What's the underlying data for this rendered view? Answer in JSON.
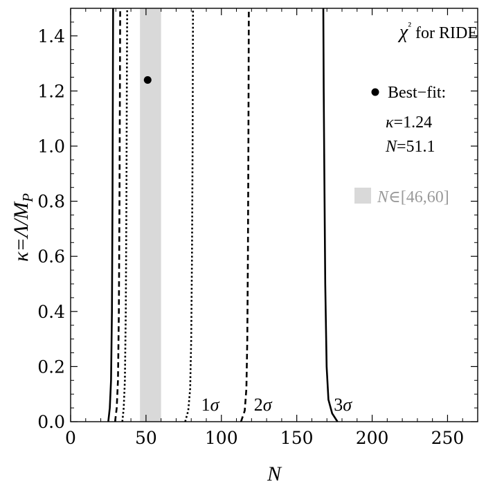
{
  "chart_data": {
    "type": "line",
    "title": "χ² for RIDE",
    "xlabel": "N",
    "ylabel": "κ=Λ/M_P",
    "xlim": [
      0,
      270
    ],
    "ylim": [
      0,
      1.5
    ],
    "x_ticks": [
      "0",
      "50",
      "100",
      "150",
      "200",
      "250"
    ],
    "x_tick_values": [
      0,
      50,
      100,
      150,
      200,
      250
    ],
    "y_ticks": [
      "0.0",
      "0.2",
      "0.4",
      "0.6",
      "0.8",
      "1.0",
      "1.2",
      "1.4"
    ],
    "y_tick_values": [
      0.0,
      0.2,
      0.4,
      0.6,
      0.8,
      1.0,
      1.2,
      1.4
    ],
    "best_fit": {
      "label": "Best−fit:",
      "kappa_text": "=1.24",
      "N_text": "=51.1",
      "N": 51.1,
      "kappa": 1.24
    },
    "band": {
      "label": "∈[46,60]",
      "range": [
        46,
        60
      ],
      "color": "#d9d9d9"
    },
    "contours": [
      {
        "sigma_label": "1σ",
        "style": "dotted",
        "left": [
          [
            34.3,
            0.0
          ],
          [
            35.2,
            0.05
          ],
          [
            36.0,
            0.15
          ],
          [
            36.6,
            0.4
          ],
          [
            37.0,
            0.8
          ],
          [
            37.3,
            1.2
          ],
          [
            37.5,
            1.5
          ]
        ],
        "right": [
          [
            76.0,
            0.0
          ],
          [
            78.0,
            0.04
          ],
          [
            79.3,
            0.12
          ],
          [
            80.0,
            0.3
          ],
          [
            80.5,
            0.6
          ],
          [
            80.9,
            1.0
          ],
          [
            81.2,
            1.5
          ]
        ]
      },
      {
        "sigma_label": "2σ",
        "style": "dashed",
        "left": [
          [
            29.5,
            0.0
          ],
          [
            30.6,
            0.05
          ],
          [
            31.4,
            0.15
          ],
          [
            32.0,
            0.4
          ],
          [
            32.4,
            0.8
          ],
          [
            32.7,
            1.2
          ],
          [
            32.9,
            1.5
          ]
        ],
        "right": [
          [
            113.0,
            0.0
          ],
          [
            115.5,
            0.04
          ],
          [
            116.6,
            0.12
          ],
          [
            117.2,
            0.3
          ],
          [
            117.6,
            0.6
          ],
          [
            117.9,
            1.0
          ],
          [
            118.2,
            1.5
          ]
        ]
      },
      {
        "sigma_label": "3σ",
        "style": "solid",
        "left": [
          [
            25.0,
            0.0
          ],
          [
            26.0,
            0.05
          ],
          [
            26.8,
            0.15
          ],
          [
            27.4,
            0.4
          ],
          [
            27.8,
            0.8
          ],
          [
            28.0,
            1.2
          ],
          [
            28.2,
            1.5
          ]
        ],
        "right": [
          [
            177.0,
            0.0
          ],
          [
            173.5,
            0.03
          ],
          [
            171.0,
            0.08
          ],
          [
            169.8,
            0.2
          ],
          [
            168.9,
            0.5
          ],
          [
            168.3,
            0.9
          ],
          [
            167.9,
            1.2
          ],
          [
            167.6,
            1.5
          ]
        ]
      }
    ],
    "sigma_label_at": [
      [
        82,
        0.04
      ],
      [
        117,
        0.04
      ],
      [
        170,
        0.04
      ]
    ]
  }
}
